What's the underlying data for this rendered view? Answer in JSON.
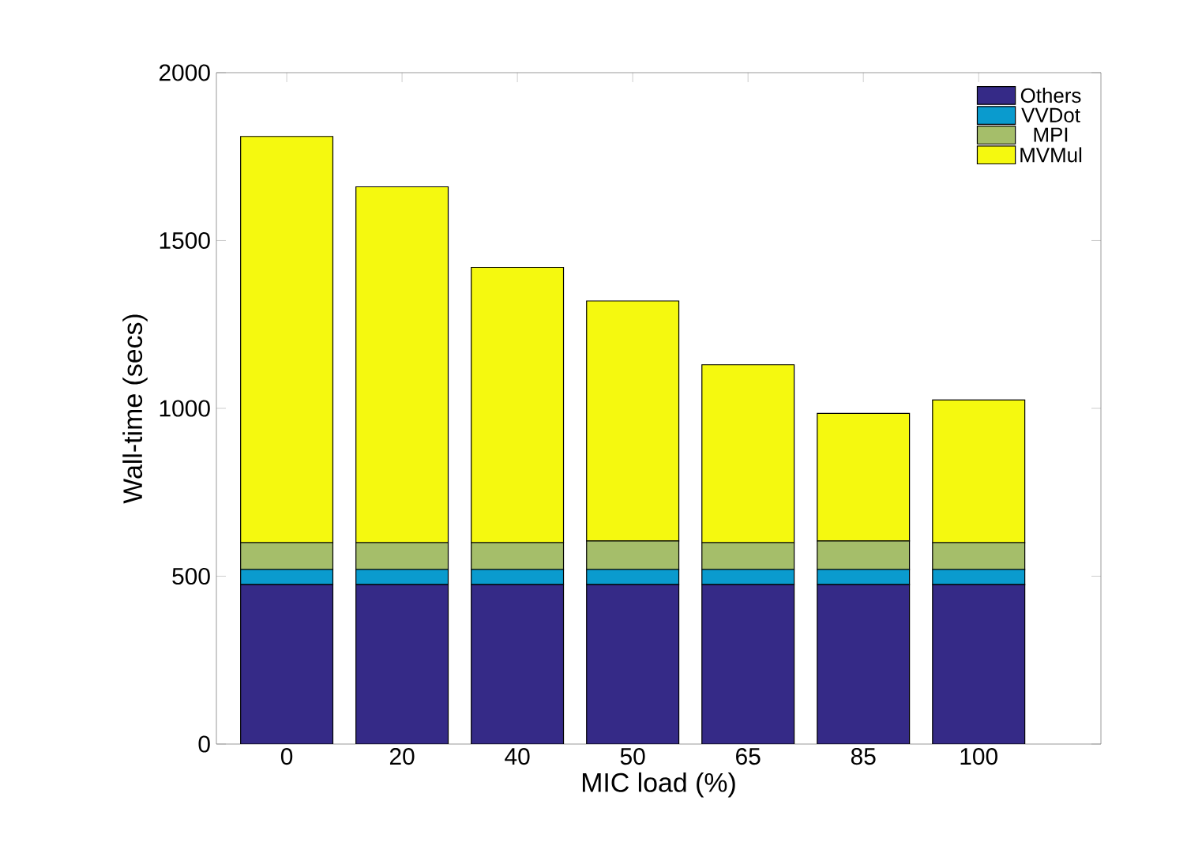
{
  "chart_data": {
    "type": "bar",
    "stacked": true,
    "xlabel": "MIC load (%)",
    "ylabel": "Wall-time (secs)",
    "categories": [
      "0",
      "20",
      "40",
      "50",
      "65",
      "85",
      "100"
    ],
    "series": [
      {
        "name": "Others",
        "color": "#352a87",
        "values": [
          475,
          475,
          475,
          475,
          475,
          475,
          475
        ]
      },
      {
        "name": "VVDot",
        "color": "#0a9bce",
        "values": [
          45,
          45,
          45,
          45,
          45,
          45,
          45
        ]
      },
      {
        "name": "MPI",
        "color": "#a5be6a",
        "values": [
          80,
          80,
          80,
          85,
          80,
          85,
          80
        ]
      },
      {
        "name": "MVMul",
        "color": "#f5f90f",
        "values": [
          1210,
          1060,
          820,
          715,
          530,
          380,
          425
        ]
      }
    ],
    "ylim": [
      0,
      2000
    ],
    "yticks": [
      0,
      500,
      1000,
      1500,
      2000
    ],
    "grid": false,
    "legend": "top right"
  }
}
